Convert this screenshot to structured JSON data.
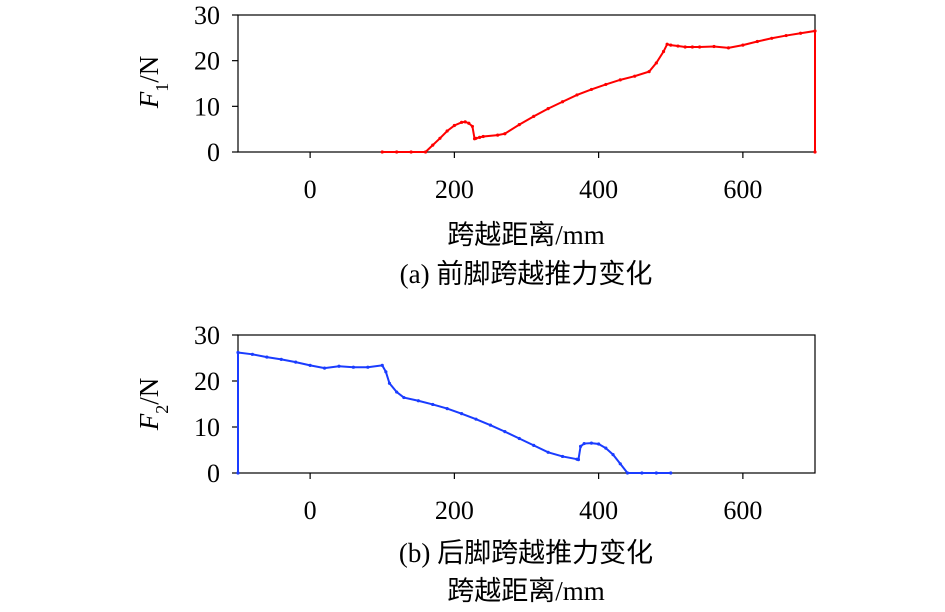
{
  "chart_data": [
    {
      "type": "line",
      "ylabel_main": "F",
      "ylabel_sub": "1",
      "ylabel_unit": "/N",
      "xlabel": "跨越距离/mm",
      "caption": "(a) 前脚跨越推力变化",
      "xlim": [
        -100,
        700
      ],
      "ylim": [
        0,
        30
      ],
      "xticks": [
        "0",
        "200",
        "400",
        "600"
      ],
      "xtick_values": [
        0,
        200,
        400,
        600
      ],
      "yticks": [
        "0",
        "10",
        "20",
        "30"
      ],
      "ytick_values": [
        0,
        10,
        20,
        30
      ],
      "grid": false,
      "color": "#ff0000",
      "series": [
        {
          "x": [
            100,
            120,
            140,
            160,
            170,
            180,
            190,
            200,
            210,
            215,
            220,
            225,
            228,
            230,
            235,
            240,
            260,
            270,
            290,
            310,
            330,
            350,
            370,
            390,
            410,
            430,
            450,
            470,
            480,
            490,
            495,
            500,
            510,
            520,
            530,
            540,
            560,
            580,
            600,
            620,
            640,
            660,
            680,
            700,
            700
          ],
          "y": [
            0,
            0,
            0,
            0,
            1.5,
            3.0,
            4.6,
            5.8,
            6.5,
            6.6,
            6.3,
            5.6,
            2.9,
            3.0,
            3.2,
            3.4,
            3.7,
            4.0,
            6.0,
            7.8,
            9.5,
            11.0,
            12.5,
            13.7,
            14.8,
            15.8,
            16.6,
            17.6,
            19.5,
            22.0,
            23.6,
            23.4,
            23.2,
            23.0,
            23.0,
            23.0,
            23.1,
            22.8,
            23.4,
            24.2,
            24.9,
            25.5,
            26.0,
            26.5,
            0
          ]
        }
      ]
    },
    {
      "type": "line",
      "ylabel_main": "F",
      "ylabel_sub": "2",
      "ylabel_unit": "/N",
      "xlabel": "跨越距离/mm",
      "caption": "(b) 后脚跨越推力变化",
      "xlim": [
        -100,
        700
      ],
      "ylim": [
        0,
        30
      ],
      "xticks": [
        "0",
        "200",
        "400",
        "600"
      ],
      "xtick_values": [
        0,
        200,
        400,
        600
      ],
      "yticks": [
        "0",
        "10",
        "20",
        "30"
      ],
      "ytick_values": [
        0,
        10,
        20,
        30
      ],
      "grid": false,
      "color": "#1a3cff",
      "series": [
        {
          "x": [
            -100,
            -100,
            -80,
            -60,
            -40,
            -20,
            0,
            20,
            40,
            60,
            80,
            100,
            105,
            110,
            120,
            130,
            150,
            170,
            190,
            210,
            230,
            250,
            270,
            290,
            310,
            330,
            350,
            370,
            372,
            375,
            380,
            390,
            400,
            410,
            420,
            430,
            440,
            460,
            480,
            500
          ],
          "y": [
            0,
            26.2,
            25.8,
            25.2,
            24.7,
            24.1,
            23.4,
            22.8,
            23.2,
            23.0,
            23.0,
            23.4,
            22.0,
            19.5,
            17.6,
            16.4,
            15.7,
            14.9,
            14.0,
            12.9,
            11.7,
            10.4,
            9.0,
            7.5,
            6.0,
            4.5,
            3.6,
            3.0,
            2.9,
            5.8,
            6.4,
            6.5,
            6.3,
            5.4,
            4.0,
            2.0,
            0,
            0,
            0,
            0
          ]
        }
      ]
    }
  ]
}
